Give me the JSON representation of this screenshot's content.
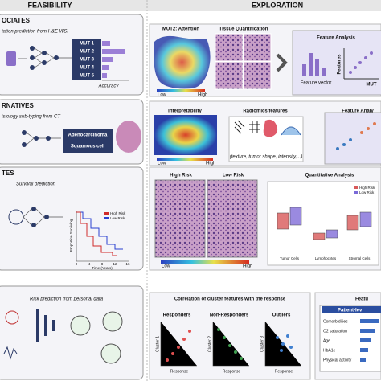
{
  "header": {
    "left": "FEASIBILITY",
    "right": "EXPLORATION"
  },
  "rows": [
    {
      "title": "OCIATES",
      "task": "tation prediction from H&E WSI",
      "outputs": [
        "MUT 1",
        "MUT 2",
        "MUT 3",
        "MUT 4",
        "MUT 5"
      ],
      "axis": "Accuracy",
      "panels": {
        "attention": "MUT2: Attention",
        "quant": "Tissue Quantification",
        "analysis": "Feature Analysis",
        "vector": "Feature vector",
        "features": "Features",
        "mut": "MUT",
        "low": "Low",
        "high": "High"
      }
    },
    {
      "title": "RNATIVES",
      "task": "istology sub-typing from CT",
      "outputs": [
        "Adenocarcinoma",
        "Squamous cell"
      ],
      "panels": {
        "interp": "Interpretability",
        "radiomics": "Radiomics features",
        "analysis": "Feature Analy",
        "note": "(texture, tumor shape, intensity,...)",
        "low": "Low",
        "high": "High"
      }
    },
    {
      "title": "TES",
      "task": "Survival prediction",
      "km": {
        "legend": [
          "High Risk",
          "Low Risk"
        ],
        "ylabel": "Proportion Surviving",
        "xlabel": "Time (Years)",
        "xticks": [
          "0",
          "4",
          "8",
          "12",
          "16"
        ]
      },
      "panels": {
        "high": "High Risk",
        "low": "Low Risk",
        "quant": "Quantitative Analysis",
        "legend": [
          "High Risk",
          "Low Risk"
        ],
        "cats": [
          "Tumor Cells",
          "Lymphocytes",
          "Stromal Cells"
        ],
        "cbLow": "Low",
        "cbHigh": "High"
      }
    },
    {
      "task": "Risk prediction from personal data",
      "panels": {
        "corr": "Correlation of cluster features with the response",
        "groups": [
          "Responders",
          "Non-Responders",
          "Outliers"
        ],
        "clusters": [
          "Cluster 1",
          "Cluster 2",
          "Cluster 3"
        ],
        "response": "Response",
        "feat": "Featu",
        "patient": "Patient-lev",
        "items": [
          "Comorbidities",
          "O2 saturation",
          "Age",
          "HbA1c",
          "Physical activity"
        ]
      }
    }
  ]
}
